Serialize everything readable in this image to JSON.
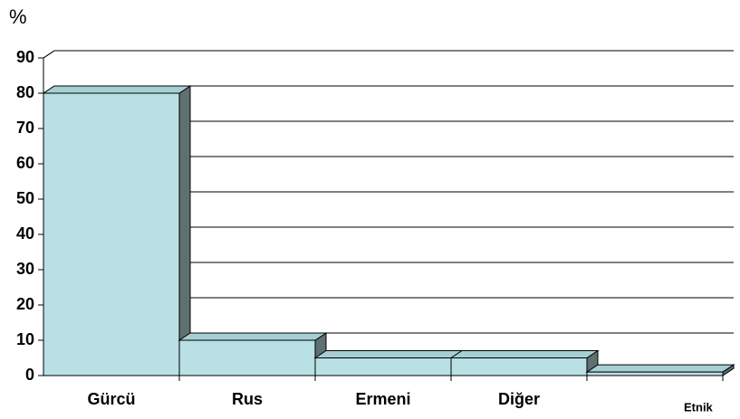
{
  "chart_data": {
    "type": "bar3d",
    "y_label": "%",
    "x_label": "Etnik",
    "categories": [
      "Gürcü",
      "Rus",
      "Ermeni",
      "Diğer",
      null
    ],
    "values": [
      80,
      10,
      5,
      5,
      1
    ],
    "color": "#b9e0e4",
    "side_color": "#5f7070",
    "top_color": "#a6cfd4",
    "ylim": [
      0,
      90
    ],
    "yticks": [
      0,
      10,
      20,
      30,
      40,
      50,
      60,
      70,
      80,
      90
    ],
    "grid": true
  }
}
